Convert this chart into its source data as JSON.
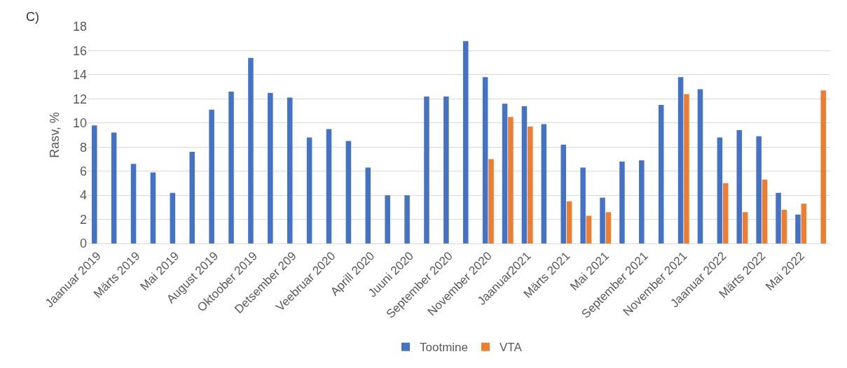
{
  "chart_data": {
    "type": "bar",
    "ylabel": "Rasv, %",
    "annotations": [
      "C)"
    ],
    "categories": [
      "Jaanuar 2019",
      null,
      "Märts 2019",
      null,
      "Mai 2019",
      null,
      "August 2019",
      null,
      "Oktoober 2019",
      null,
      "Detsember 209",
      null,
      "Veebruar 2020",
      null,
      "Aprill 2020",
      null,
      "Juuni 2020",
      null,
      "September 2020",
      null,
      "November 2020",
      null,
      "Jaanuar2021",
      null,
      "Märts 2021",
      null,
      "Mai 2021",
      null,
      "September 2021",
      null,
      "November 2021",
      null,
      "Jaanuar 2022",
      null,
      "Märts 2022",
      null,
      "Mai 2022",
      null
    ],
    "series": [
      {
        "name": "Tootmine",
        "color": "#4472c4",
        "values": [
          9.8,
          9.2,
          6.6,
          5.9,
          4.2,
          7.6,
          11.1,
          12.6,
          15.4,
          12.5,
          12.1,
          8.8,
          9.5,
          8.5,
          6.3,
          4.0,
          4.0,
          12.2,
          12.2,
          16.8,
          13.8,
          11.6,
          11.4,
          9.9,
          8.2,
          6.3,
          3.8,
          6.8,
          6.9,
          11.5,
          13.8,
          12.8,
          8.8,
          9.4,
          8.9,
          4.2,
          2.4,
          null
        ]
      },
      {
        "name": "VTA",
        "color": "#ed7d31",
        "values": [
          null,
          null,
          null,
          null,
          null,
          null,
          null,
          null,
          null,
          null,
          null,
          null,
          null,
          null,
          null,
          null,
          null,
          null,
          null,
          null,
          7.0,
          10.5,
          9.7,
          null,
          3.5,
          2.3,
          2.6,
          null,
          null,
          null,
          12.4,
          null,
          5.0,
          2.6,
          5.3,
          2.8,
          3.3,
          12.7
        ]
      }
    ],
    "ylim": [
      0,
      18
    ],
    "yticks": [
      0,
      2,
      4,
      6,
      8,
      10,
      12,
      14,
      16,
      18
    ],
    "grid": "y",
    "legend": "bottom"
  }
}
